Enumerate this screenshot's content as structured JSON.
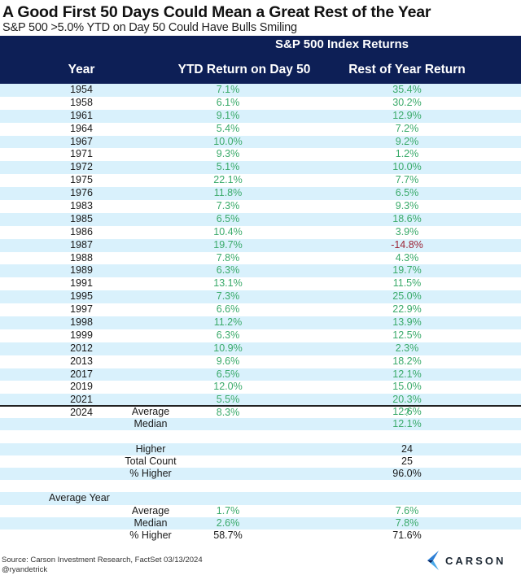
{
  "header": {
    "title": "A Good First 50 Days Could Mean a Great Rest of the Year",
    "subtitle": "S&P 500 >5.0% YTD on Day 50 Could Have Bulls Smiling"
  },
  "table": {
    "group_header": "S&P 500 Index Returns",
    "columns": [
      "Year",
      "YTD Return on Day 50",
      "Rest of Year Return"
    ],
    "rows": [
      {
        "year": "1954",
        "ytd": "7.1%",
        "roy": "35.4%",
        "roy_color": "green"
      },
      {
        "year": "1958",
        "ytd": "6.1%",
        "roy": "30.2%",
        "roy_color": "green"
      },
      {
        "year": "1961",
        "ytd": "9.1%",
        "roy": "12.9%",
        "roy_color": "green"
      },
      {
        "year": "1964",
        "ytd": "5.4%",
        "roy": "7.2%",
        "roy_color": "green"
      },
      {
        "year": "1967",
        "ytd": "10.0%",
        "roy": "9.2%",
        "roy_color": "green"
      },
      {
        "year": "1971",
        "ytd": "9.3%",
        "roy": "1.2%",
        "roy_color": "green"
      },
      {
        "year": "1972",
        "ytd": "5.1%",
        "roy": "10.0%",
        "roy_color": "green"
      },
      {
        "year": "1975",
        "ytd": "22.1%",
        "roy": "7.7%",
        "roy_color": "green"
      },
      {
        "year": "1976",
        "ytd": "11.8%",
        "roy": "6.5%",
        "roy_color": "green"
      },
      {
        "year": "1983",
        "ytd": "7.3%",
        "roy": "9.3%",
        "roy_color": "green"
      },
      {
        "year": "1985",
        "ytd": "6.5%",
        "roy": "18.6%",
        "roy_color": "green"
      },
      {
        "year": "1986",
        "ytd": "10.4%",
        "roy": "3.9%",
        "roy_color": "green"
      },
      {
        "year": "1987",
        "ytd": "19.7%",
        "roy": "-14.8%",
        "roy_color": "red"
      },
      {
        "year": "1988",
        "ytd": "7.8%",
        "roy": "4.3%",
        "roy_color": "green"
      },
      {
        "year": "1989",
        "ytd": "6.3%",
        "roy": "19.7%",
        "roy_color": "green"
      },
      {
        "year": "1991",
        "ytd": "13.1%",
        "roy": "11.5%",
        "roy_color": "green"
      },
      {
        "year": "1995",
        "ytd": "7.3%",
        "roy": "25.0%",
        "roy_color": "green"
      },
      {
        "year": "1997",
        "ytd": "6.6%",
        "roy": "22.9%",
        "roy_color": "green"
      },
      {
        "year": "1998",
        "ytd": "11.2%",
        "roy": "13.9%",
        "roy_color": "green"
      },
      {
        "year": "1999",
        "ytd": "6.3%",
        "roy": "12.5%",
        "roy_color": "green"
      },
      {
        "year": "2012",
        "ytd": "10.9%",
        "roy": "2.3%",
        "roy_color": "green"
      },
      {
        "year": "2013",
        "ytd": "9.6%",
        "roy": "18.2%",
        "roy_color": "green"
      },
      {
        "year": "2017",
        "ytd": "6.5%",
        "roy": "12.1%",
        "roy_color": "green"
      },
      {
        "year": "2019",
        "ytd": "12.0%",
        "roy": "15.0%",
        "roy_color": "green"
      },
      {
        "year": "2021",
        "ytd": "5.5%",
        "roy": "20.3%",
        "roy_color": "green"
      },
      {
        "year": "2024",
        "ytd": "8.3%",
        "roy": "?",
        "roy_color": "green"
      }
    ],
    "summary": [
      {
        "label": "Average",
        "ytd": "",
        "roy": "12.6%",
        "ytd_color": "green",
        "roy_color": "green",
        "align": "center"
      },
      {
        "label": "Median",
        "ytd": "",
        "roy": "12.1%",
        "ytd_color": "green",
        "roy_color": "green",
        "align": "center"
      },
      {
        "label": "",
        "ytd": "",
        "roy": "",
        "ytd_color": "black",
        "roy_color": "black",
        "align": "center"
      },
      {
        "label": "Higher",
        "ytd": "",
        "roy": "24",
        "ytd_color": "black",
        "roy_color": "black",
        "align": "center"
      },
      {
        "label": "Total Count",
        "ytd": "",
        "roy": "25",
        "ytd_color": "black",
        "roy_color": "black",
        "align": "center"
      },
      {
        "label": "% Higher",
        "ytd": "",
        "roy": "96.0%",
        "ytd_color": "black",
        "roy_color": "black",
        "align": "center"
      },
      {
        "label": "",
        "ytd": "",
        "roy": "",
        "ytd_color": "black",
        "roy_color": "black",
        "align": "center"
      },
      {
        "label": "Average Year",
        "ytd": "",
        "roy": "",
        "ytd_color": "black",
        "roy_color": "black",
        "align": "left"
      },
      {
        "label": "Average",
        "ytd": "1.7%",
        "roy": "7.6%",
        "ytd_color": "green",
        "roy_color": "green",
        "align": "center"
      },
      {
        "label": "Median",
        "ytd": "2.6%",
        "roy": "7.8%",
        "ytd_color": "green",
        "roy_color": "green",
        "align": "center"
      },
      {
        "label": "% Higher",
        "ytd": "58.7%",
        "roy": "71.6%",
        "ytd_color": "black",
        "roy_color": "black",
        "align": "center"
      }
    ]
  },
  "footer": {
    "source": "Source: Carson Investment Research, FactSet 03/13/2024",
    "handle": "@ryandetrick",
    "brand": "CARSON"
  },
  "colors": {
    "header_bg": "#0d1f56",
    "alt_row": "#d9f1fc",
    "positive": "#3aaa6a",
    "negative": "#9b2335"
  },
  "chart_data": {
    "type": "table",
    "title": "A Good First 50 Days Could Mean a Great Rest of the Year",
    "subtitle": "S&P 500 >5.0% YTD on Day 50 Could Have Bulls Smiling",
    "group_header": "S&P 500 Index Returns",
    "columns": [
      "Year",
      "YTD Return on Day 50",
      "Rest of Year Return"
    ],
    "categories": [
      "1954",
      "1958",
      "1961",
      "1964",
      "1967",
      "1971",
      "1972",
      "1975",
      "1976",
      "1983",
      "1985",
      "1986",
      "1987",
      "1988",
      "1989",
      "1991",
      "1995",
      "1997",
      "1998",
      "1999",
      "2012",
      "2013",
      "2017",
      "2019",
      "2021",
      "2024"
    ],
    "series": [
      {
        "name": "YTD Return on Day 50 (%)",
        "values": [
          7.1,
          6.1,
          9.1,
          5.4,
          10.0,
          9.3,
          5.1,
          22.1,
          11.8,
          7.3,
          6.5,
          10.4,
          19.7,
          7.8,
          6.3,
          13.1,
          7.3,
          6.6,
          11.2,
          6.3,
          10.9,
          9.6,
          6.5,
          12.0,
          5.5,
          8.3
        ]
      },
      {
        "name": "Rest of Year Return (%)",
        "values": [
          35.4,
          30.2,
          12.9,
          7.2,
          9.2,
          1.2,
          10.0,
          7.7,
          6.5,
          9.3,
          18.6,
          3.9,
          -14.8,
          4.3,
          19.7,
          11.5,
          25.0,
          22.9,
          13.9,
          12.5,
          2.3,
          18.2,
          12.1,
          15.0,
          20.3,
          null
        ]
      }
    ],
    "summary": {
      "rest_of_year_average": 12.6,
      "rest_of_year_median": 12.1,
      "higher": 24,
      "total_count": 25,
      "pct_higher": 96.0,
      "average_year": {
        "ytd_average": 1.7,
        "roy_average": 7.6,
        "ytd_median": 2.6,
        "roy_median": 7.8,
        "ytd_pct_higher": 58.7,
        "roy_pct_higher": 71.6
      }
    },
    "source": "Source: Carson Investment Research, FactSet 03/13/2024"
  }
}
